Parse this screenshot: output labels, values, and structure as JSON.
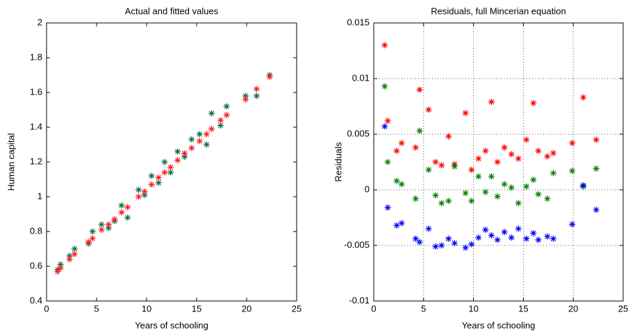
{
  "chart_data": [
    {
      "type": "scatter",
      "title": "Actual and fitted values",
      "xlabel": "Years of schooling",
      "ylabel": "Human capital",
      "x": [
        1.1,
        1.4,
        2.3,
        2.8,
        4.2,
        4.6,
        5.5,
        6.2,
        6.8,
        7.5,
        8.1,
        9.2,
        9.8,
        10.5,
        11.2,
        11.8,
        12.4,
        13.1,
        13.8,
        14.5,
        15.3,
        16.0,
        16.5,
        17.4,
        18.0,
        19.9,
        21.0,
        22.3
      ],
      "series": [
        {
          "color": "#0f6b45",
          "values": [
            0.58,
            0.61,
            0.66,
            0.7,
            0.73,
            0.8,
            0.84,
            0.82,
            0.86,
            0.95,
            0.88,
            1.04,
            1.01,
            1.12,
            1.08,
            1.2,
            1.14,
            1.26,
            1.23,
            1.33,
            1.36,
            1.3,
            1.48,
            1.41,
            1.52,
            1.58,
            1.58,
            1.7
          ]
        },
        {
          "color": "#ff1a1a",
          "values": [
            0.57,
            0.59,
            0.64,
            0.67,
            0.74,
            0.76,
            0.81,
            0.84,
            0.87,
            0.91,
            0.94,
            1.0,
            1.03,
            1.07,
            1.11,
            1.14,
            1.17,
            1.21,
            1.25,
            1.28,
            1.32,
            1.36,
            1.39,
            1.44,
            1.47,
            1.56,
            1.62,
            1.69
          ]
        }
      ],
      "xlim": [
        0,
        25
      ],
      "xticks": [
        0,
        5,
        10,
        15,
        20,
        25
      ],
      "ylim": [
        0.4,
        2
      ],
      "yticks": [
        0.4,
        0.6,
        0.8,
        1,
        1.2,
        1.4,
        1.6,
        1.8,
        2
      ],
      "grid": false
    },
    {
      "type": "scatter",
      "title": "Residuals, full Mincerian equation",
      "xlabel": "Years of schooling",
      "ylabel": "Residuals",
      "x": [
        1.1,
        1.4,
        2.3,
        2.8,
        4.2,
        4.6,
        5.5,
        6.2,
        6.8,
        7.5,
        8.1,
        9.2,
        9.8,
        10.5,
        11.2,
        11.8,
        12.4,
        13.1,
        13.8,
        14.5,
        15.3,
        16.0,
        16.5,
        17.4,
        18.0,
        19.9,
        21.0,
        22.3
      ],
      "series": [
        {
          "color": "#ff0000",
          "values": [
            0.013,
            0.0062,
            0.0035,
            0.0042,
            0.0038,
            0.009,
            0.0072,
            0.0025,
            0.0022,
            0.0048,
            0.0023,
            0.0069,
            0.0018,
            0.0028,
            0.0035,
            0.0079,
            0.0025,
            0.0038,
            0.0032,
            0.0028,
            0.0045,
            0.0078,
            0.0035,
            0.003,
            0.0033,
            0.0042,
            0.0083,
            0.0045
          ]
        },
        {
          "color": "#008000",
          "values": [
            0.0093,
            0.0025,
            0.0008,
            0.0005,
            -0.0008,
            0.0053,
            0.0018,
            -0.0005,
            -0.0012,
            -0.001,
            0.0021,
            -0.0003,
            -0.001,
            0.0012,
            -0.0002,
            0.0012,
            -0.0006,
            0.0005,
            0.0002,
            -0.0012,
            0.0003,
            0.0009,
            -0.0004,
            -0.0008,
            0.0015,
            0.0017,
            0.0003,
            0.0019
          ]
        },
        {
          "color": "#0000ff",
          "values": [
            0.0057,
            -0.0016,
            -0.0032,
            -0.003,
            -0.0044,
            -0.0047,
            -0.0035,
            -0.0051,
            -0.005,
            -0.0044,
            -0.0048,
            -0.0052,
            -0.0049,
            -0.0043,
            -0.0036,
            -0.0041,
            -0.0045,
            -0.0038,
            -0.0043,
            -0.0035,
            -0.0044,
            -0.0039,
            -0.0045,
            -0.0042,
            -0.0044,
            -0.0031,
            0.0004,
            -0.0018
          ]
        }
      ],
      "xlim": [
        0,
        25
      ],
      "xticks": [
        0,
        5,
        10,
        15,
        20,
        25
      ],
      "ylim": [
        -0.01,
        0.015
      ],
      "yticks": [
        -0.01,
        -0.005,
        0,
        0.005,
        0.01,
        0.015
      ],
      "grid": true
    }
  ]
}
